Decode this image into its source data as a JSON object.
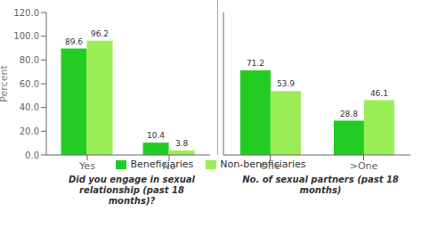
{
  "chart_data": [
    {
      "type": "bar",
      "categories": [
        "Yes",
        "No"
      ],
      "series": [
        {
          "name": "Beneficiaries",
          "color": "#22cc22",
          "values": [
            89.6,
            10.4
          ]
        },
        {
          "name": "Non-beneficiaries",
          "color": "#99ee55",
          "values": [
            96.2,
            3.8
          ]
        }
      ],
      "x_label": "Did you engage in sexual relationship (past 18\nmonths)?",
      "y_label": "Percent",
      "ylim": [
        0,
        120
      ],
      "yticks": [
        {
          "value": 0,
          "label": "0.0"
        },
        {
          "value": 20,
          "label": "20.0"
        },
        {
          "value": 40,
          "label": "40.0"
        },
        {
          "value": 60,
          "label": "60.0"
        },
        {
          "value": 80,
          "label": "80.0"
        },
        {
          "value": 100,
          "label": "100.0"
        },
        {
          "value": 120,
          "label": "120.0"
        }
      ],
      "data_labels": true,
      "grid": false,
      "legend": "bottom"
    },
    {
      "type": "bar",
      "categories": [
        "One",
        ">One"
      ],
      "series": [
        {
          "name": "Beneficiaries",
          "color": "#22cc22",
          "values": [
            71.2,
            28.8
          ]
        },
        {
          "name": "Non-beneficiaries",
          "color": "#99ee55",
          "values": [
            53.9,
            46.1
          ]
        }
      ],
      "x_label": "No. of sexual partners (past 18\nmonths)",
      "ylim": [
        0,
        120
      ],
      "data_labels": true,
      "grid": false,
      "tick_labels": "x",
      "legend": "bottom"
    }
  ]
}
